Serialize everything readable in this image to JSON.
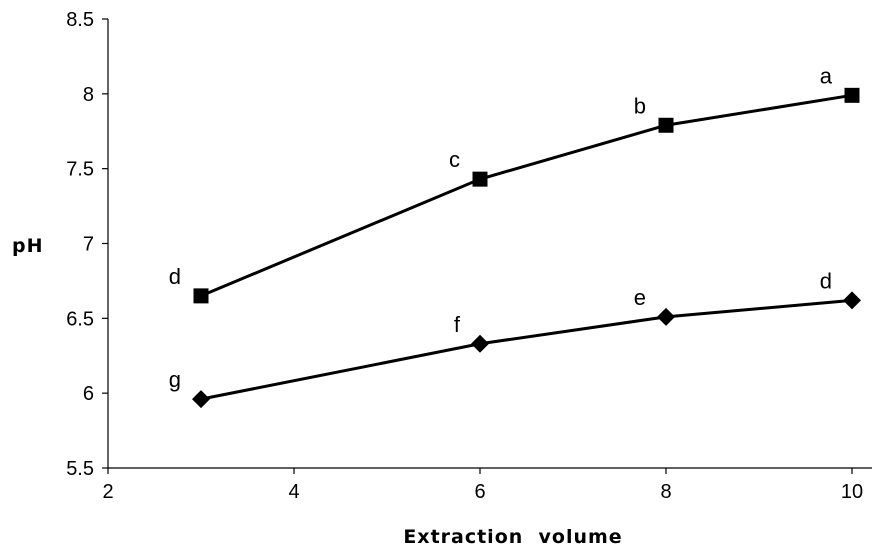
{
  "chart_data": {
    "type": "line",
    "xlabel": "Extraction  volume",
    "ylabel": "pH",
    "xlim": [
      2,
      10
    ],
    "ylim": [
      5.5,
      8.5
    ],
    "xticks": [
      "2",
      "4",
      "6",
      "8",
      "10"
    ],
    "yticks": [
      "5.5",
      "6",
      "6.5",
      "7",
      "7.5",
      "8",
      "8.5"
    ],
    "grid": false,
    "legend": "none",
    "series": [
      {
        "marker": "square",
        "color": "#000000",
        "points": [
          {
            "x": 3,
            "y": 6.65,
            "label": "d"
          },
          {
            "x": 6,
            "y": 7.43,
            "label": "c"
          },
          {
            "x": 8,
            "y": 7.79,
            "label": "b"
          },
          {
            "x": 10,
            "y": 7.99,
            "label": "a"
          }
        ]
      },
      {
        "marker": "diamond",
        "color": "#000000",
        "points": [
          {
            "x": 3,
            "y": 5.96,
            "label": "g"
          },
          {
            "x": 6,
            "y": 6.33,
            "label": "f"
          },
          {
            "x": 8,
            "y": 6.51,
            "label": "e"
          },
          {
            "x": 10,
            "y": 6.62,
            "label": "d"
          }
        ]
      }
    ]
  }
}
